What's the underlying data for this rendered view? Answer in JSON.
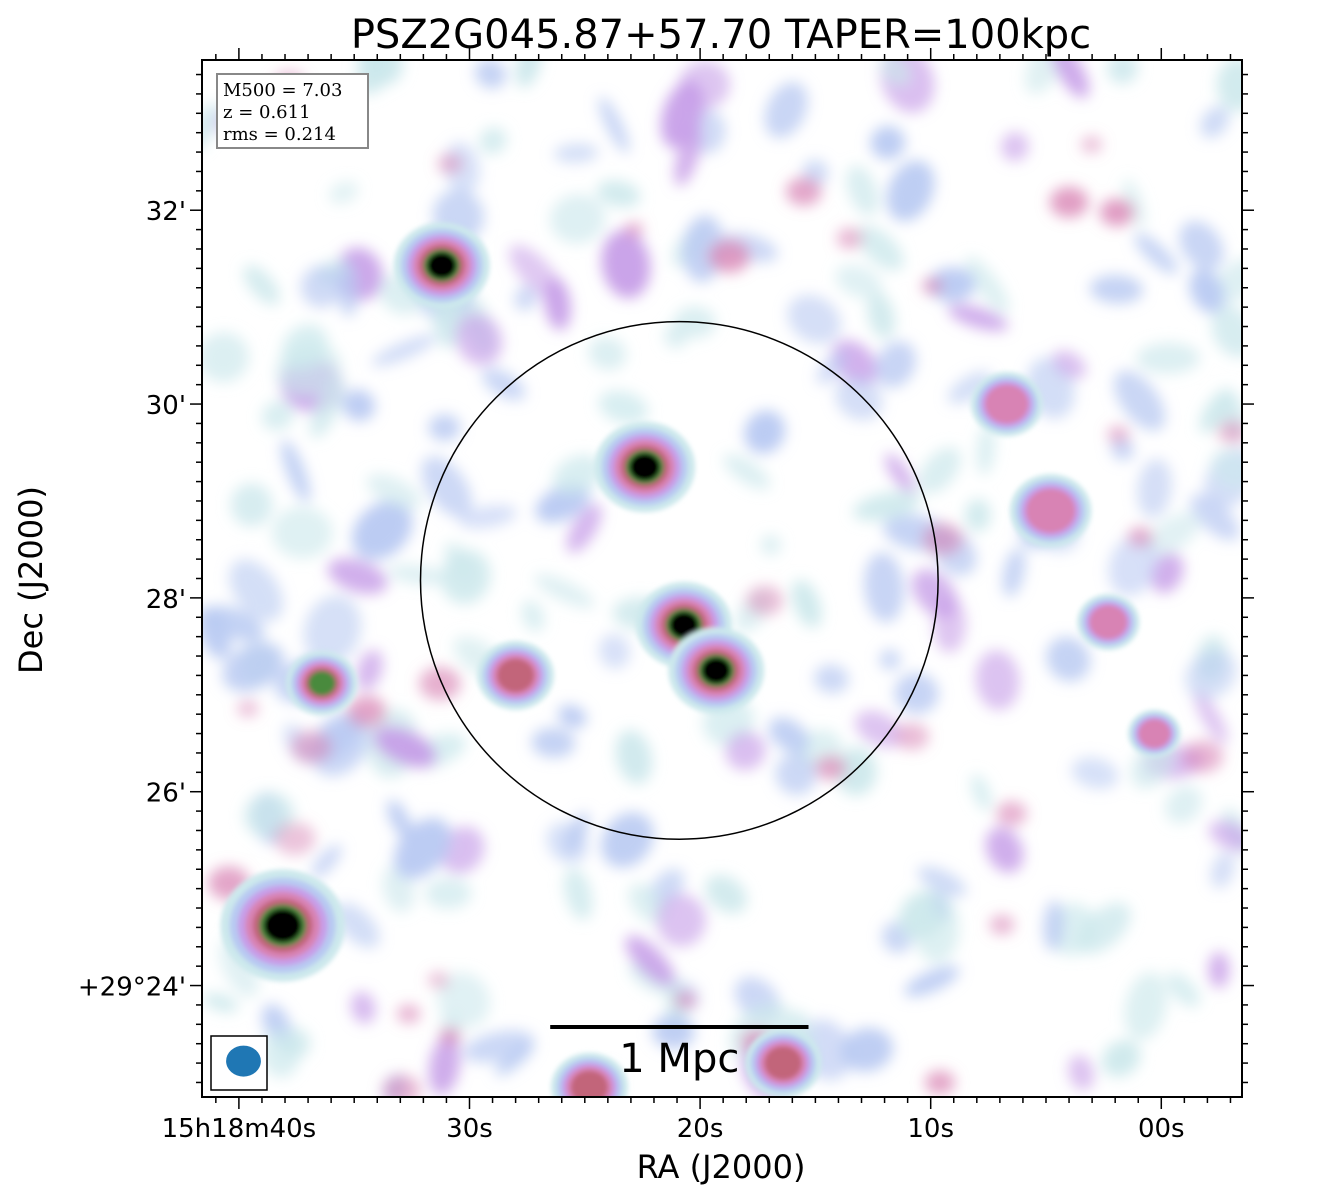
{
  "chart_data": {
    "type": "heatmap",
    "title": "PSZ2G045.87+57.70 TAPER=100kpc",
    "xlabel": "RA (J2000)",
    "ylabel": "Dec (J2000)",
    "x_ticks": [
      "15h18m40s",
      "30s",
      "20s",
      "10s",
      "00s"
    ],
    "x_tick_seconds": [
      40,
      30,
      20,
      10,
      0
    ],
    "xlim_seconds": [
      41.6,
      -3.5
    ],
    "y_ticks": [
      "32'",
      "30'",
      "28'",
      "26'",
      "+29°24'"
    ],
    "y_tick_arcmin": [
      32,
      30,
      28,
      26,
      24
    ],
    "ylim_arcmin": [
      22.85,
      33.55
    ],
    "info_box": [
      "M500 = 7.03",
      "z = 0.611",
      "rms = 0.214"
    ],
    "scale_bar_label": "1 Mpc",
    "scale_bar_seconds": 11.2,
    "circle": {
      "center_ra_s": 20.9,
      "center_dec_arcmin": 28.18,
      "radius_arcmin": 2.67
    },
    "beam": {
      "ra_s": 39.8,
      "dec_arcmin": 23.22,
      "major_arcmin": 0.36,
      "minor_arcmin": 0.32
    },
    "colormap": [
      "#ffffff",
      "#cce8ec",
      "#b8c9f2",
      "#c79ee8",
      "#d883b4",
      "#c2657a",
      "#4a8a3c",
      "#000000"
    ],
    "compact_sources": [
      {
        "ra_s": 31.2,
        "dec_arcmin": 31.43,
        "size": 1.0,
        "peak": 1.0
      },
      {
        "ra_s": 22.4,
        "dec_arcmin": 29.35,
        "size": 1.05,
        "peak": 1.0
      },
      {
        "ra_s": 20.7,
        "dec_arcmin": 27.72,
        "size": 1.0,
        "peak": 1.0
      },
      {
        "ra_s": 19.3,
        "dec_arcmin": 27.25,
        "size": 1.0,
        "peak": 1.0
      },
      {
        "ra_s": 38.1,
        "dec_arcmin": 24.62,
        "size": 1.3,
        "peak": 1.0
      },
      {
        "ra_s": 36.4,
        "dec_arcmin": 27.12,
        "size": 0.75,
        "peak": 0.8
      },
      {
        "ra_s": 28.0,
        "dec_arcmin": 27.2,
        "size": 0.8,
        "peak": 0.75
      },
      {
        "ra_s": 6.7,
        "dec_arcmin": 30.0,
        "size": 0.75,
        "peak": 0.6
      },
      {
        "ra_s": 4.8,
        "dec_arcmin": 28.9,
        "size": 0.85,
        "peak": 0.6
      },
      {
        "ra_s": 16.4,
        "dec_arcmin": 23.2,
        "size": 0.8,
        "peak": 0.65
      },
      {
        "ra_s": 24.8,
        "dec_arcmin": 22.95,
        "size": 0.8,
        "peak": 0.65
      },
      {
        "ra_s": 2.3,
        "dec_arcmin": 27.75,
        "size": 0.65,
        "peak": 0.55
      },
      {
        "ra_s": 0.3,
        "dec_arcmin": 26.6,
        "size": 0.55,
        "peak": 0.45
      }
    ],
    "grid": false,
    "legend": false
  }
}
